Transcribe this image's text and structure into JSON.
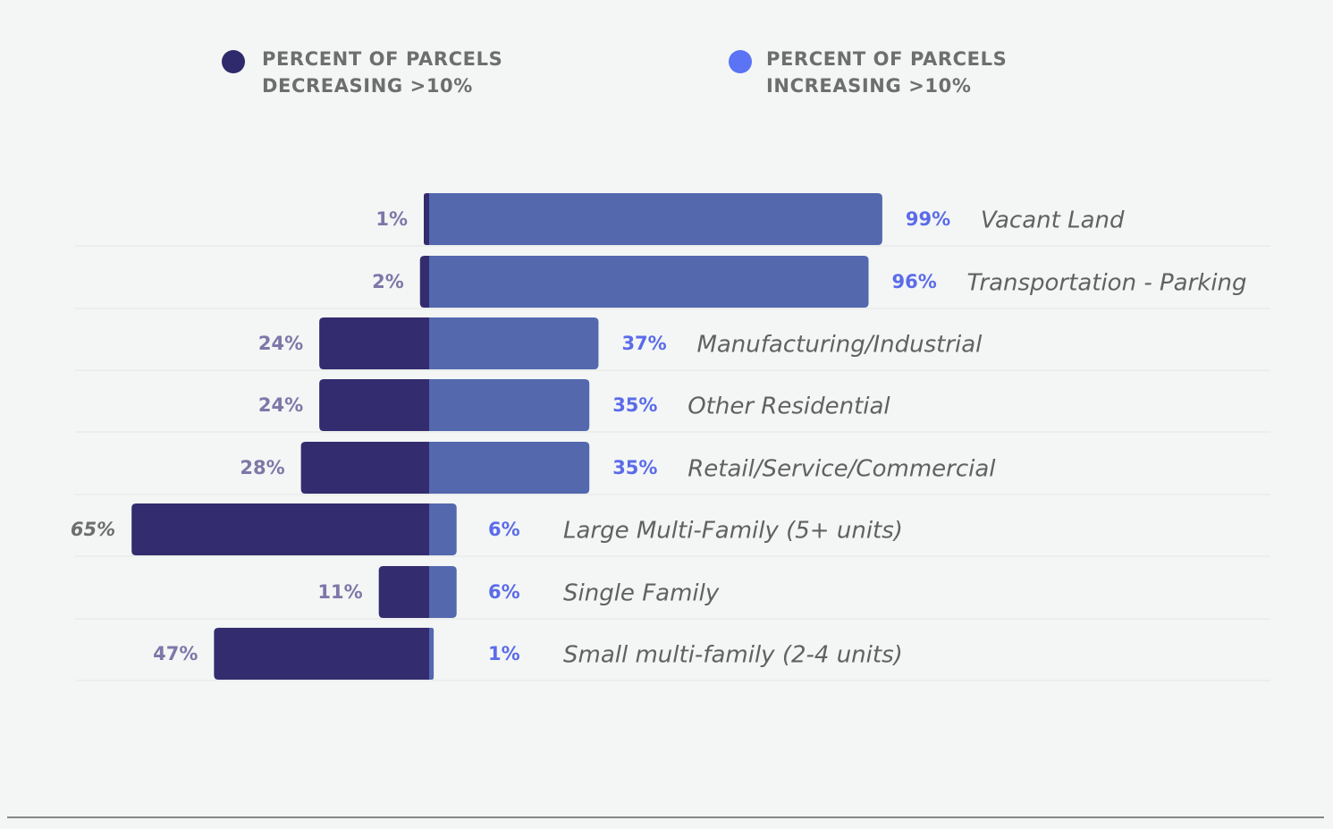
{
  "legend": {
    "decreasing": {
      "line1": "PERCENT OF PARCELS",
      "line2": "DECREASING >10%"
    },
    "increasing": {
      "line1": "PERCENT OF PARCELS",
      "line2": "INCREASING >10%"
    }
  },
  "colors": {
    "background": "#f3f6f5",
    "decreasing": "#332c6e",
    "increasing": "#5468ae",
    "legend_decreasing_dot": "#2f2a6b",
    "legend_increasing_dot": "#5b73f5",
    "gridline": "#e3e6e5",
    "baseline": "#444444"
  },
  "chart_data": {
    "type": "bar",
    "orientation": "diverging-horizontal",
    "categories": [
      "Vacant Land",
      "Transportation - Parking",
      "Manufacturing/Industrial",
      "Other Residential",
      "Retail/Service/Commercial",
      "Large Multi-Family (5+ units)",
      "Single Family",
      "Small multi-family (2-4 units)"
    ],
    "series": [
      {
        "name": "PERCENT OF PARCELS DECREASING >10%",
        "values": [
          1,
          2,
          24,
          24,
          28,
          65,
          11,
          47
        ],
        "labels": [
          "1%",
          "2%",
          "24%",
          "24%",
          "28%",
          "65%",
          "11%",
          "47%"
        ]
      },
      {
        "name": "PERCENT OF PARCELS INCREASING >10%",
        "values": [
          99,
          96,
          37,
          35,
          35,
          6,
          6,
          1
        ],
        "labels": [
          "99%",
          "96%",
          "37%",
          "35%",
          "35%",
          "6%",
          "6%",
          "1%"
        ]
      }
    ],
    "xlim": [
      -65,
      99
    ],
    "unit": "%",
    "legend_position": "top",
    "grid": "horizontal row separators"
  }
}
